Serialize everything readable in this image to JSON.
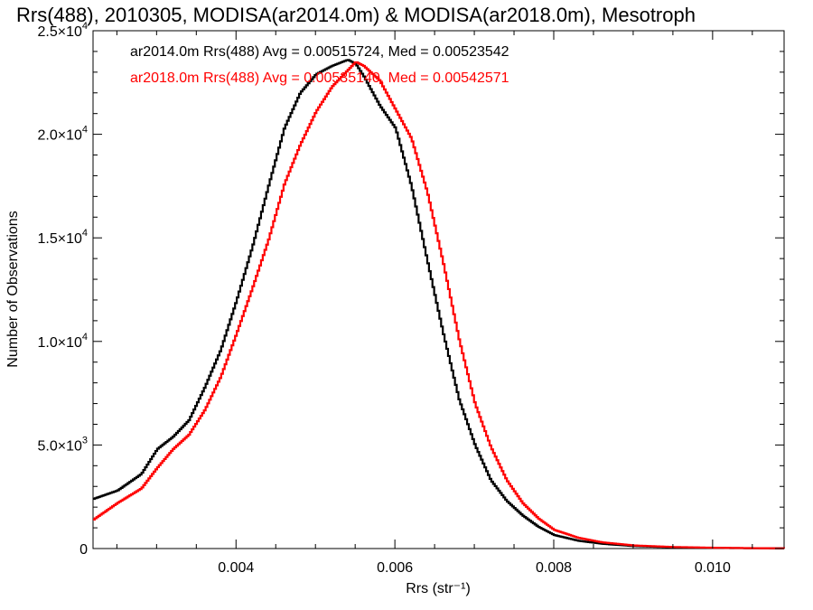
{
  "chart_data": {
    "type": "line",
    "title": "Rrs(488), 2010305, MODISA(ar2014.0m) & MODISA(ar2018.0m), Mesotroph",
    "xlabel": "Rrs (str⁻¹)",
    "ylabel": "Number of Observations",
    "xlim": [
      0.0022,
      0.0109
    ],
    "ylim": [
      0,
      25000
    ],
    "x_ticks": [
      {
        "value": 0.004,
        "label": "0.004"
      },
      {
        "value": 0.006,
        "label": "0.006"
      },
      {
        "value": 0.008,
        "label": "0.008"
      },
      {
        "value": 0.01,
        "label": "0.010"
      }
    ],
    "y_ticks": [
      {
        "value": 0,
        "mant": "0",
        "exp": ""
      },
      {
        "value": 5000,
        "mant": "5.0×10",
        "exp": "3"
      },
      {
        "value": 10000,
        "mant": "1.0×10",
        "exp": "4"
      },
      {
        "value": 15000,
        "mant": "1.5×10",
        "exp": "4"
      },
      {
        "value": 20000,
        "mant": "2.0×10",
        "exp": "4"
      },
      {
        "value": 25000,
        "mant": "2.5×10",
        "exp": "4"
      }
    ],
    "grid": false,
    "legend_position": "top-left",
    "series": [
      {
        "name": "ar2014.0m",
        "color": "#000000",
        "label": "ar2014.0m Rrs(488) Avg = 0.00515724, Med = 0.00523542",
        "x": [
          0.0022,
          0.0025,
          0.0028,
          0.003,
          0.0032,
          0.0034,
          0.0036,
          0.0038,
          0.004,
          0.0042,
          0.0044,
          0.0046,
          0.0048,
          0.005,
          0.0052,
          0.0054,
          0.0055,
          0.0056,
          0.0058,
          0.006,
          0.0062,
          0.0064,
          0.0066,
          0.0068,
          0.007,
          0.0072,
          0.0074,
          0.0076,
          0.0078,
          0.008,
          0.0083,
          0.0086,
          0.009,
          0.0095,
          0.01,
          0.0105,
          0.0109
        ],
        "y": [
          2400,
          2800,
          3600,
          4800,
          5400,
          6200,
          7800,
          9600,
          12000,
          14600,
          17500,
          20300,
          22000,
          22900,
          23300,
          23600,
          23400,
          22800,
          21400,
          20300,
          17500,
          13900,
          10400,
          7200,
          5000,
          3300,
          2300,
          1600,
          1050,
          650,
          380,
          230,
          120,
          60,
          30,
          15,
          10
        ]
      },
      {
        "name": "ar2018.0m",
        "color": "#ff0000",
        "label": "ar2018.0m Rrs(488) Avg = 0.00535140, Med = 0.00542571",
        "x": [
          0.0022,
          0.0025,
          0.0028,
          0.003,
          0.0032,
          0.0034,
          0.0036,
          0.0038,
          0.004,
          0.0042,
          0.0044,
          0.0046,
          0.0048,
          0.005,
          0.0052,
          0.0054,
          0.0055,
          0.0056,
          0.0058,
          0.006,
          0.0062,
          0.0064,
          0.0066,
          0.0068,
          0.007,
          0.0072,
          0.0074,
          0.0076,
          0.0078,
          0.008,
          0.0083,
          0.0086,
          0.009,
          0.0095,
          0.01,
          0.0105,
          0.0109
        ],
        "y": [
          1400,
          2200,
          2900,
          3900,
          4800,
          5500,
          6700,
          8300,
          10400,
          12600,
          14900,
          17600,
          19500,
          21100,
          22300,
          23100,
          23500,
          23300,
          22600,
          21200,
          19800,
          17200,
          13800,
          10100,
          7000,
          4900,
          3300,
          2200,
          1450,
          900,
          520,
          300,
          150,
          75,
          40,
          20,
          10
        ]
      }
    ]
  }
}
